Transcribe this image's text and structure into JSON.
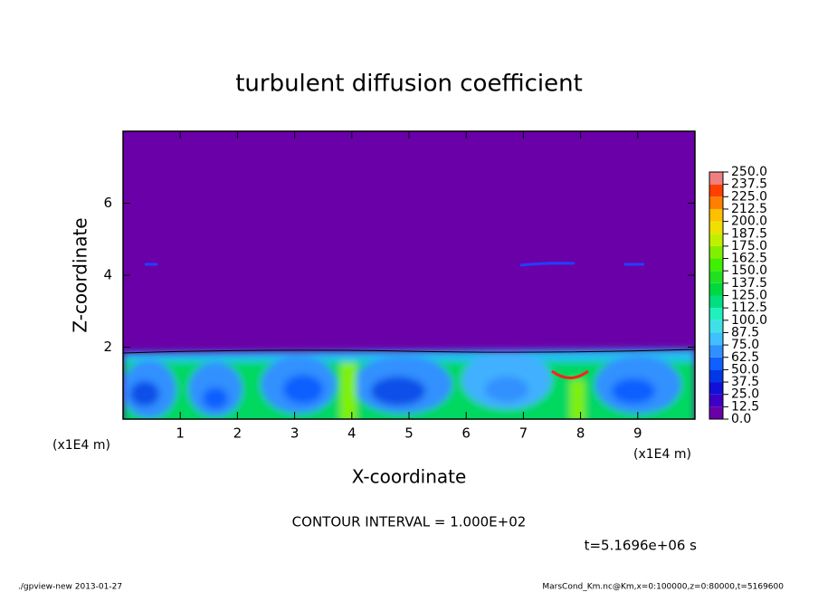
{
  "chart_data": {
    "type": "contour",
    "title": "turbulent diffusion coefficient",
    "x_label": "X-coordinate",
    "y_label": "Z-coordinate",
    "x_unit": "(x1E4 m)",
    "y_unit": "(x1E4 m)",
    "xlim": [
      0,
      10
    ],
    "ylim": [
      0,
      8
    ],
    "xticks": [
      1,
      2,
      3,
      4,
      5,
      6,
      7,
      8,
      9
    ],
    "yticks": [
      2,
      4,
      6
    ],
    "levels": [
      {
        "value": 0,
        "label": "0.0"
      },
      {
        "value": 12.5,
        "label": "12.5"
      },
      {
        "value": 25,
        "label": "25.0"
      },
      {
        "value": 37.5,
        "label": "37.5"
      },
      {
        "value": 50,
        "label": "50.0"
      },
      {
        "value": 62.5,
        "label": "62.5"
      },
      {
        "value": 75,
        "label": "75.0"
      },
      {
        "value": 87.5,
        "label": "87.5"
      },
      {
        "value": 100,
        "label": "100.0"
      },
      {
        "value": 112.5,
        "label": "112.5"
      },
      {
        "value": 125,
        "label": "125.0"
      },
      {
        "value": 137.5,
        "label": "137.5"
      },
      {
        "value": 150,
        "label": "150.0"
      },
      {
        "value": 162.5,
        "label": "162.5"
      },
      {
        "value": 175,
        "label": "175.0"
      },
      {
        "value": 187.5,
        "label": "187.5"
      },
      {
        "value": 200,
        "label": "200.0"
      },
      {
        "value": 212.5,
        "label": "212.5"
      },
      {
        "value": 225,
        "label": "225.0"
      },
      {
        "value": 237.5,
        "label": "237.5"
      },
      {
        "value": 250,
        "label": "250.0"
      }
    ],
    "colors": [
      "#6a00a8",
      "#3c00c8",
      "#1010d8",
      "#0038e8",
      "#1060ff",
      "#3090ff",
      "#40c0ff",
      "#40e0e8",
      "#20f0c0",
      "#00e080",
      "#00d840",
      "#20e020",
      "#40f000",
      "#80f000",
      "#c0f000",
      "#f0e000",
      "#ffc000",
      "#ff8000",
      "#ff4000",
      "#f08080"
    ],
    "annotations": [
      "CONTOUR INTERVAL = 1.000E+02",
      "t=5.1696e+06 s"
    ],
    "footer_left": "./gpview-new  2013-01-27",
    "footer_right": "MarsCond_Km.nc@Km,x=0:100000,z=0:80000,t=5169600"
  }
}
